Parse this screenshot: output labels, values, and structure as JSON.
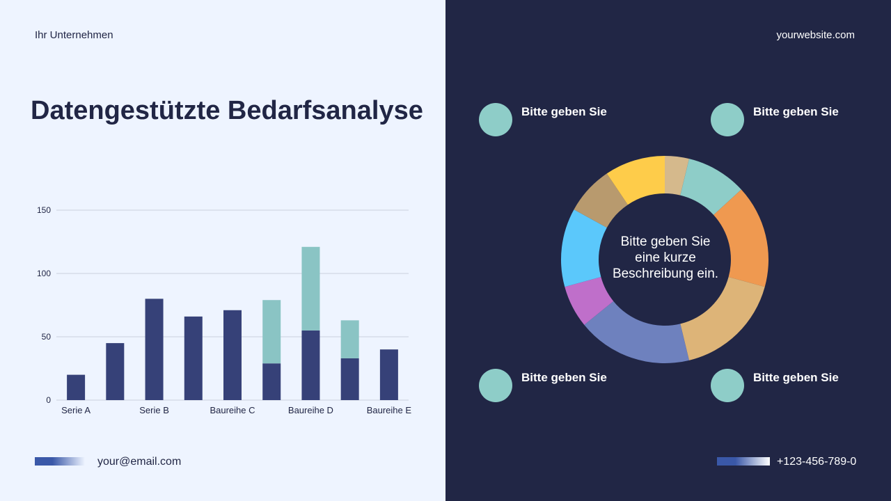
{
  "company": "Ihr Unternehmen",
  "website": "yourwebsite.com",
  "title": "Datengestützte Bedarfsanalyse",
  "email": "your@email.com",
  "phone": "+123-456-789-0",
  "colors": {
    "left_bg": "#eef4ff",
    "right_bg": "#212645",
    "bar_primary": "#364178",
    "bar_secondary": "#8ac4c4",
    "dot": "#8ecdc8"
  },
  "callouts": [
    {
      "label": "Bitte geben Sie"
    },
    {
      "label": "Bitte geben Sie"
    },
    {
      "label": "Bitte geben Sie"
    },
    {
      "label": "Bitte geben Sie"
    }
  ],
  "donut_center_lines": [
    "Bitte geben Sie",
    "eine kurze",
    "Beschreibung ein."
  ],
  "chart_data": [
    {
      "type": "bar",
      "stacked": true,
      "categories": [
        "Serie A",
        "",
        "Serie B",
        "",
        "Baureihe C",
        "",
        "Baureihe D",
        "",
        "Baureihe E"
      ],
      "series": [
        {
          "values": [
            20,
            45,
            80,
            66,
            71,
            29,
            55,
            33,
            40
          ],
          "color": "#364178"
        },
        {
          "values": [
            0,
            0,
            0,
            0,
            0,
            50,
            66,
            30,
            0
          ],
          "color": "#8ac4c4"
        }
      ],
      "yticks": [
        0,
        50,
        100,
        150
      ],
      "ylim": [
        0,
        150
      ],
      "grid": true
    },
    {
      "type": "pie",
      "donut": true,
      "values": [
        4,
        10,
        17,
        18,
        19,
        7,
        13,
        8,
        10
      ],
      "colors": [
        "#d5b98c",
        "#8ecdc8",
        "#ef9950",
        "#ddb478",
        "#6e81be",
        "#bf6fca",
        "#5bc8fb",
        "#b89a6e",
        "#fecc4a"
      ]
    }
  ]
}
